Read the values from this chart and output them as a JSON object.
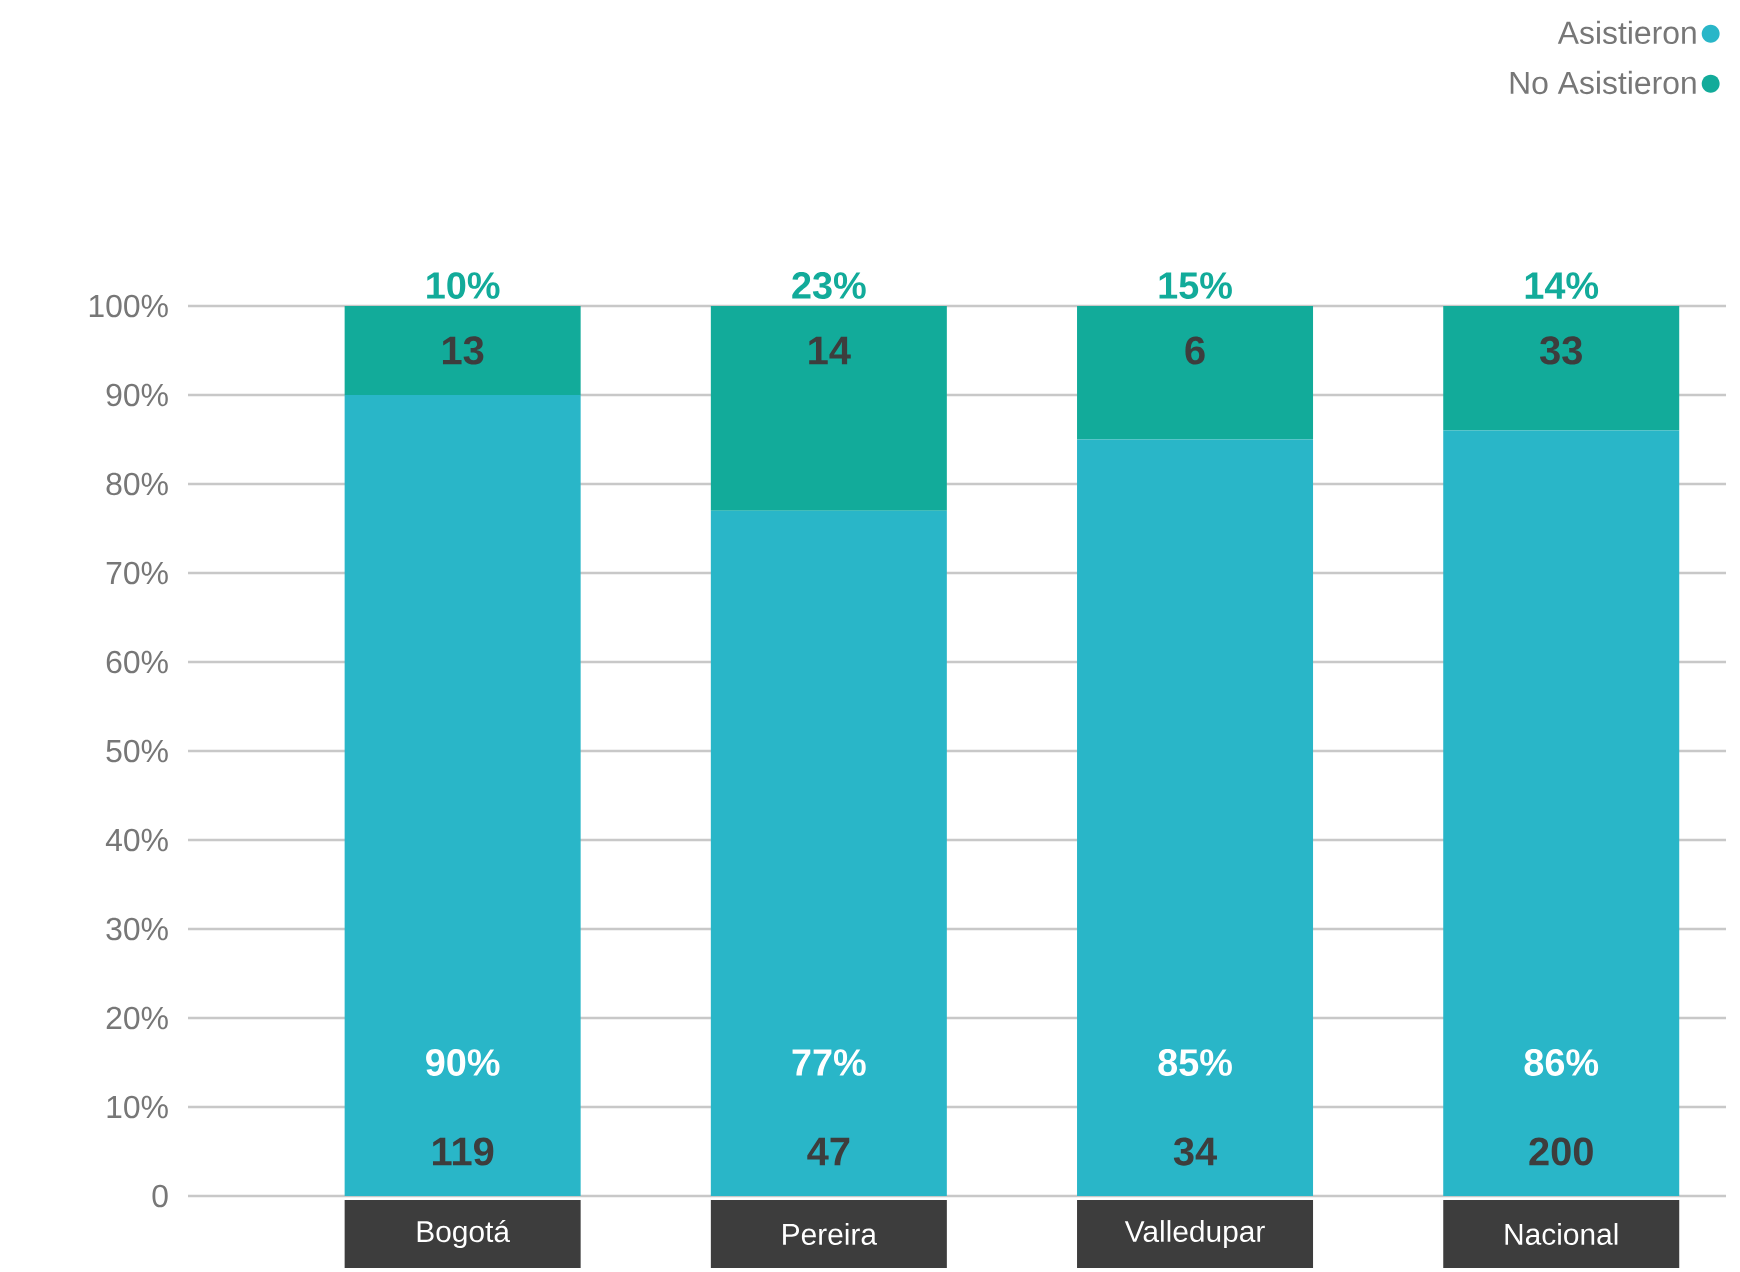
{
  "chart_data": {
    "type": "bar",
    "stacked": true,
    "categories": [
      "Bogotá",
      "Pereira",
      "Valledupar",
      "Nacional"
    ],
    "series": [
      {
        "name": "Asistieron",
        "color": "#29b6c8",
        "values": [
          90,
          77,
          85,
          86
        ],
        "value_labels": [
          "90%",
          "77%",
          "85%",
          "86%"
        ]
      },
      {
        "name": "No Asistieron",
        "color": "#12ab9a",
        "values": [
          10,
          23,
          15,
          14
        ],
        "value_labels": [
          "10%",
          "23%",
          "15%",
          "14%"
        ]
      }
    ],
    "ylim": [
      0,
      100
    ],
    "yticks": [
      0,
      {
        "value": 10,
        "label": "10%"
      },
      {
        "value": 20,
        "label": "20%"
      },
      {
        "value": 30,
        "label": "30%"
      },
      {
        "value": 40,
        "label": "40%"
      },
      {
        "value": 50,
        "label": "50%"
      },
      {
        "value": 60,
        "label": "60%"
      },
      {
        "value": 70,
        "label": "70%"
      },
      {
        "value": 80,
        "label": "80%"
      },
      {
        "value": 90,
        "label": "90%"
      },
      {
        "value": 100,
        "label": "100%"
      }
    ],
    "grid": "y",
    "legend": "top right",
    "annotations": [
      "119",
      "47",
      "34",
      "200",
      "13",
      "14",
      "6",
      "33"
    ]
  }
}
